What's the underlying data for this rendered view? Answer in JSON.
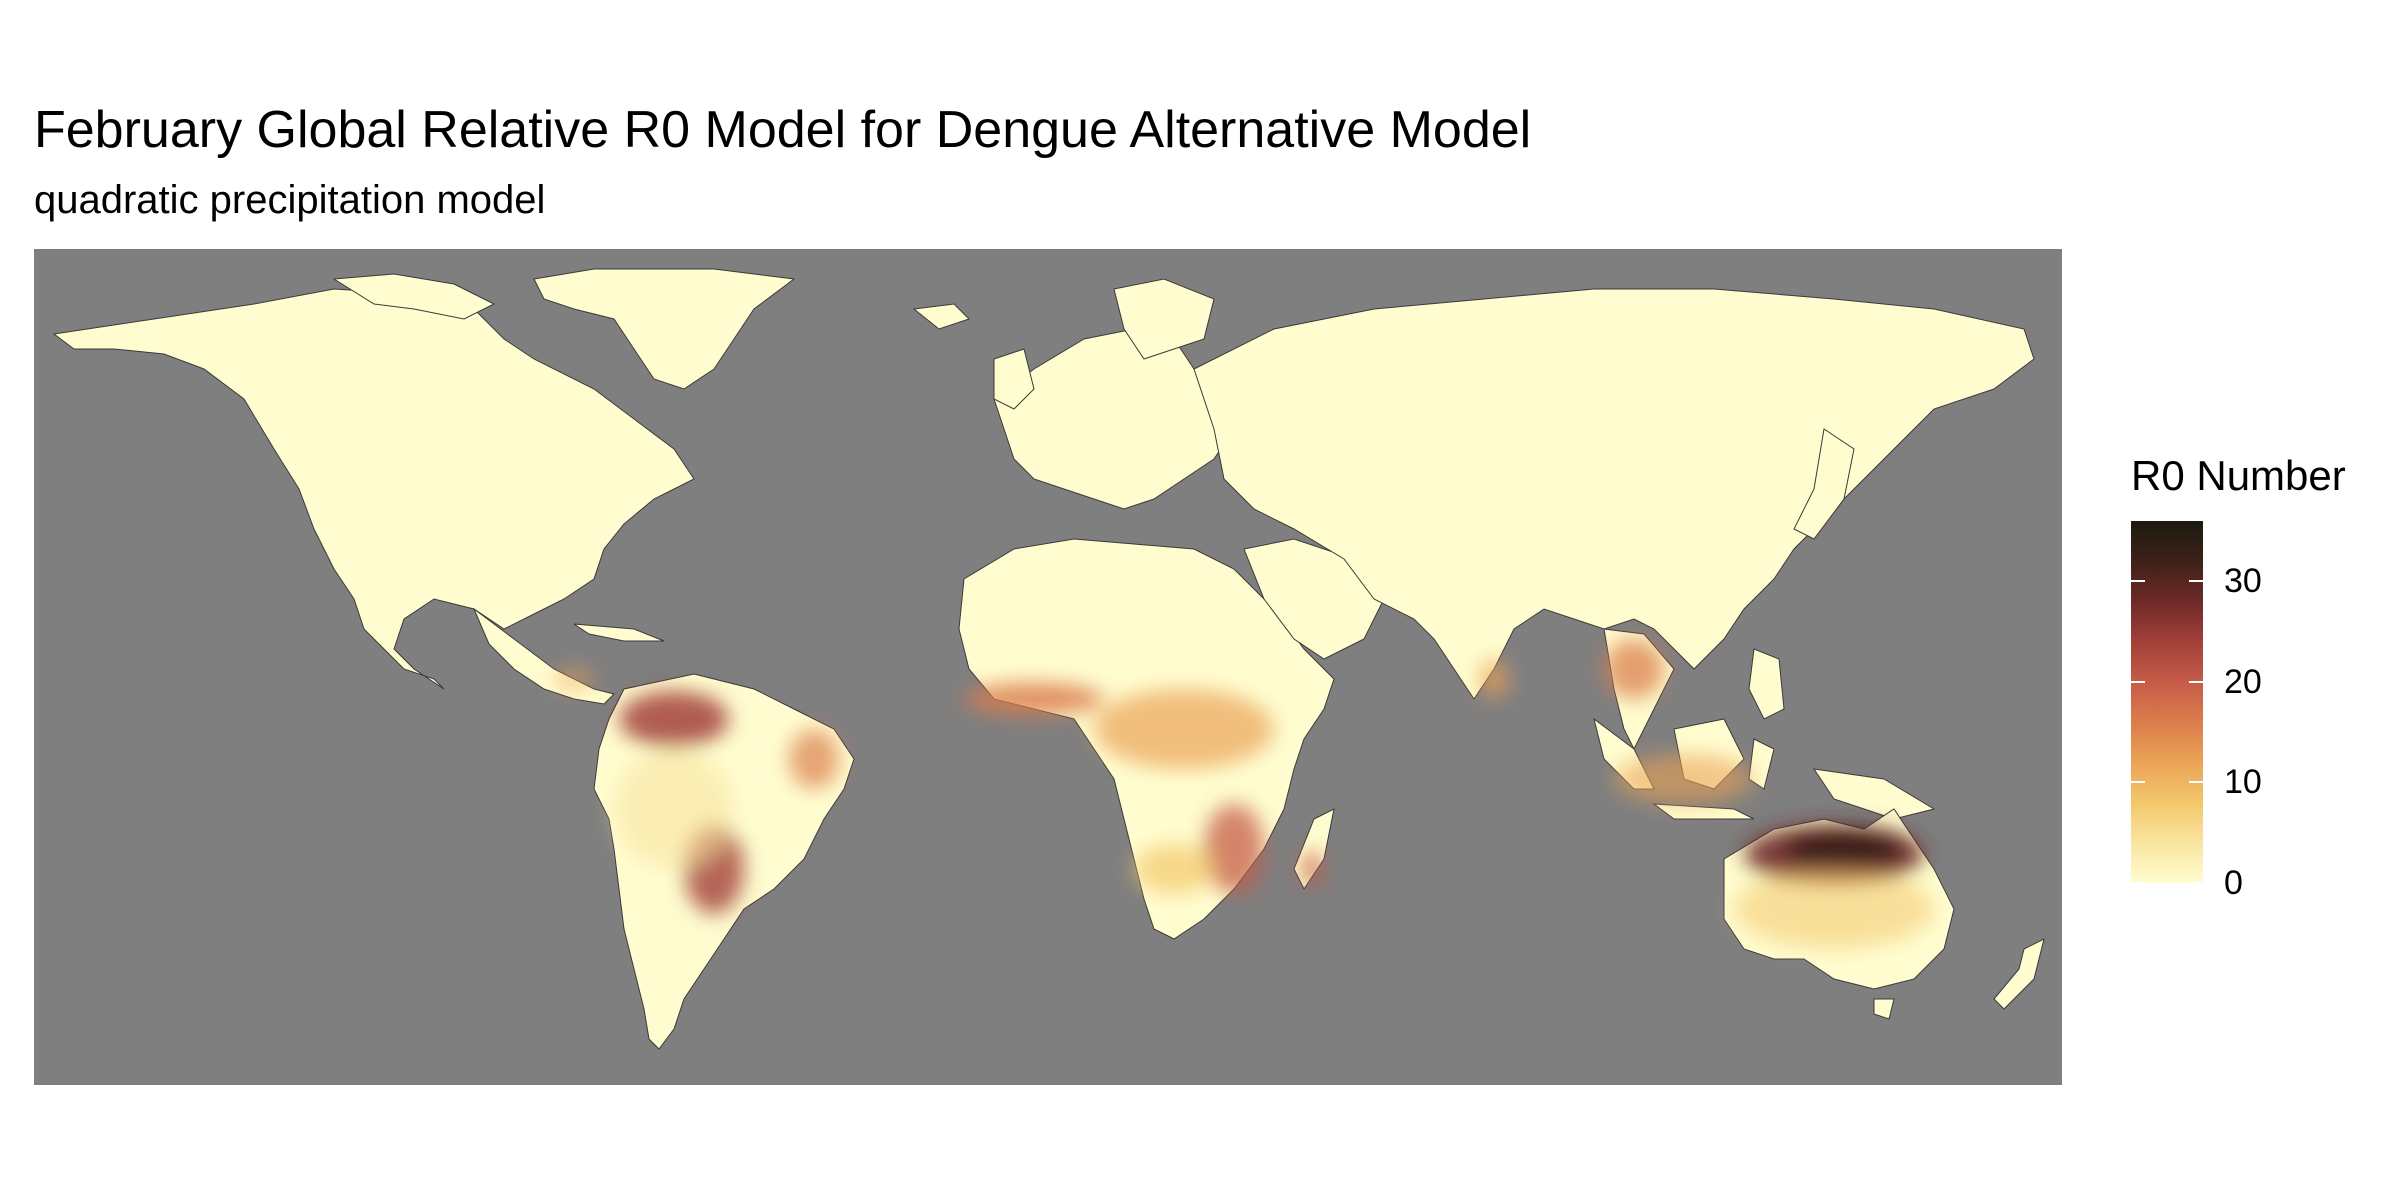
{
  "title": "February Global Relative R0 Model for Dengue Alternative Model",
  "subtitle": "quadratic precipitation model",
  "legend": {
    "title": "R0 Number",
    "range": [
      0,
      36
    ],
    "ticks": [
      {
        "value": 0,
        "label": "0"
      },
      {
        "value": 10,
        "label": "10"
      },
      {
        "value": 20,
        "label": "20"
      },
      {
        "value": 30,
        "label": "30"
      }
    ],
    "colors": [
      "#fffdd0",
      "#f9e5a0",
      "#f3c76b",
      "#eba357",
      "#db7d4c",
      "#c65b48",
      "#a24039",
      "#6e2a27",
      "#3e2118",
      "#1c1a10"
    ]
  },
  "map": {
    "ocean_color": "#7f7f7f",
    "land_base_color": "#fffdd0",
    "border_color": "#3a3a3a",
    "hotspots_description_free": true,
    "hotspots": [
      {
        "region": "Northern Australia",
        "level": 34
      },
      {
        "region": "Venezuela / Colombia",
        "level": 24
      },
      {
        "region": "Paraguay / Bolivia",
        "level": 22
      },
      {
        "region": "West Africa coast",
        "level": 15
      },
      {
        "region": "Central Africa",
        "level": 12
      },
      {
        "region": "Mozambique / Madagascar",
        "level": 18
      },
      {
        "region": "Southeast Asia",
        "level": 14
      }
    ]
  }
}
